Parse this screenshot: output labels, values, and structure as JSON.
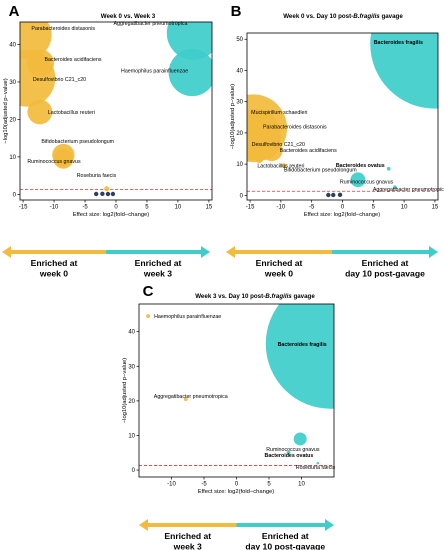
{
  "colors": {
    "enriched_first": "#F2BB3D",
    "enriched_second": "#3ECDCB",
    "nonsignificant": "#2D3E63",
    "threshold_line": "#E0312D"
  },
  "chart_data": [
    {
      "panel": "A",
      "type": "scatter",
      "title": "Week 0 vs. Week 3",
      "title_italic": "",
      "title_suffix": "",
      "xlabel": "Effect size: log2(fold−change)",
      "ylabel": "−log10(adjusted p−value)",
      "xlim": [
        -15.5,
        15.5
      ],
      "ylim": [
        -1.5,
        46
      ],
      "xticks": [
        -15,
        -10,
        -5,
        0,
        5,
        10,
        15
      ],
      "yticks": [
        0,
        10,
        20,
        30,
        40
      ],
      "threshold": 1.3,
      "arrow_left": "Enriched at\nweek 0",
      "arrow_right": "Enriched at\nweek 3",
      "points": [
        {
          "label": "Parabacteroides distasonis",
          "x": -14.3,
          "y": 42.5,
          "r": 3.9,
          "group": "first",
          "bold": false
        },
        {
          "label": "Aggregatibacter pneumotropica",
          "x": 12.5,
          "y": 43,
          "r": 4.3,
          "group": "second",
          "bold": false
        },
        {
          "label": "Bacteroides acidifaciens",
          "x": -12.2,
          "y": 35,
          "r": 2.2,
          "group": "first",
          "bold": false
        },
        {
          "label": "Desulfovibrio C21_c20",
          "x": -14.4,
          "y": 31,
          "r": 4.6,
          "group": "first",
          "bold": false
        },
        {
          "label": "Haemophilus parainfluenzae",
          "x": 12.3,
          "y": 32.5,
          "r": 3.8,
          "group": "second",
          "bold": false
        },
        {
          "label": "Lactobacillus reuteri",
          "x": -12.3,
          "y": 22,
          "r": 2.0,
          "group": "first",
          "bold": false
        },
        {
          "label": "Bifidobacterium pseudolongum",
          "x": -8.5,
          "y": 10.5,
          "r": 1.8,
          "group": "first",
          "bold": false
        },
        {
          "label": "Ruminococcus gnavus",
          "x": -8.5,
          "y": 9.5,
          "r": 1.6,
          "group": "first",
          "bold": false
        },
        {
          "label": "Roseburia faecis",
          "x": -1.5,
          "y": 1.5,
          "r": 0.4,
          "group": "first",
          "bold": false
        }
      ],
      "nonsig": [
        [
          -3.2,
          0.1
        ],
        [
          -2.2,
          0.15
        ],
        [
          -1.3,
          0.1
        ],
        [
          -0.5,
          0.1
        ]
      ]
    },
    {
      "panel": "B",
      "type": "scatter",
      "title": "Week 0 vs. Day 10 post-",
      "title_italic": "B.fragilis",
      "title_suffix": " gavage",
      "xlabel": "Effect size: log2(fold−change)",
      "ylabel": "−log10(adjusted p−value)",
      "xlim": [
        -15.5,
        15.5
      ],
      "ylim": [
        -1.5,
        52
      ],
      "xticks": [
        -15,
        -10,
        -5,
        0,
        5,
        10,
        15
      ],
      "yticks": [
        0,
        10,
        20,
        30,
        40,
        50
      ],
      "threshold": 1.3,
      "arrow_left": "Enriched at\nweek 0",
      "arrow_right": "Enriched at\nday 10 post-gavage",
      "points": [
        {
          "label": "Bacteroides fragilis",
          "x": 15,
          "y": 48.5,
          "r": 10.5,
          "group": "second",
          "bold": true
        },
        {
          "label": "Mucispirillum schaedleri",
          "x": -14.5,
          "y": 21.5,
          "r": 5.5,
          "group": "first",
          "bold": false
        },
        {
          "label": "Parabacteroides distasonis",
          "x": -14.2,
          "y": 19.5,
          "r": 4.2,
          "group": "first",
          "bold": false
        },
        {
          "label": "Desulfovibrio C21_c20",
          "x": -12.8,
          "y": 16.5,
          "r": 2.6,
          "group": "first",
          "bold": false
        },
        {
          "label": "Bacteroides acidifaciens",
          "x": -11.5,
          "y": 14.5,
          "r": 1.8,
          "group": "first",
          "bold": false
        },
        {
          "label": "Lactobacillus reuteri",
          "x": -13.5,
          "y": 11.5,
          "r": 0.6,
          "group": "first",
          "bold": false
        },
        {
          "label": "Bifidobacterium pseudolongum",
          "x": -9.5,
          "y": 9.5,
          "r": 0.4,
          "group": "first",
          "bold": false
        },
        {
          "label": "Bacteroides ovatus",
          "x": 7.5,
          "y": 8.5,
          "r": 0.3,
          "group": "second",
          "bold": true
        },
        {
          "label": "Ruminococcus gnavus",
          "x": 2.5,
          "y": 5.0,
          "r": 1.2,
          "group": "second",
          "bold": false
        },
        {
          "label": "Aggregatibacter pneumotropica",
          "x": 8.5,
          "y": 2.6,
          "r": 0.3,
          "group": "second",
          "bold": false
        }
      ],
      "nonsig": [
        [
          -2.3,
          0.1
        ],
        [
          -1.5,
          0.1
        ],
        [
          -0.4,
          0.15
        ]
      ]
    },
    {
      "panel": "C",
      "type": "scatter",
      "title": "Week 3 vs. Day 10 post-",
      "title_italic": "B.fragilis",
      "title_suffix": " gavage",
      "xlabel": "Effect size: log2(fold−change)",
      "ylabel": "−log10(adjusted p−value)",
      "xlim": [
        -15,
        15
      ],
      "ylim": [
        -2,
        48
      ],
      "xticks": [
        -10,
        -5,
        0,
        5,
        10
      ],
      "yticks": [
        0,
        10,
        20,
        30,
        40
      ],
      "threshold": 1.3,
      "arrow_left": "Enriched at\nweek 3",
      "arrow_right": "Enriched at\nday 10 post-gavage",
      "points": [
        {
          "label": "Haemophilus parainfluenzae",
          "x": -13.6,
          "y": 44.5,
          "r": 0.3,
          "group": "first",
          "bold": false
        },
        {
          "label": "Bacteroides fragilis",
          "x": 14.5,
          "y": 36.5,
          "r": 10.0,
          "group": "second",
          "bold": true
        },
        {
          "label": "Aggregatibacter pneumotropica",
          "x": -7.8,
          "y": 20.5,
          "r": 0.3,
          "group": "first",
          "bold": false
        },
        {
          "label": "Ruminococcus gnavus",
          "x": 9.8,
          "y": 9.0,
          "r": 1.0,
          "group": "second",
          "bold": false
        },
        {
          "label": "Bacteroides ovatus",
          "x": 8.0,
          "y": 5.0,
          "r": 0.3,
          "group": "second",
          "bold": true
        },
        {
          "label": "Roseburia faecis",
          "x": 12.5,
          "y": 2.0,
          "r": 0.2,
          "group": "second",
          "bold": false
        }
      ],
      "nonsig": []
    }
  ]
}
